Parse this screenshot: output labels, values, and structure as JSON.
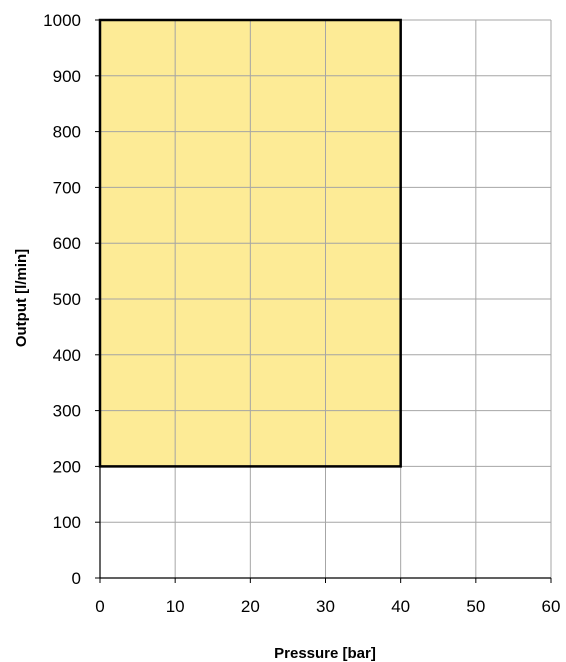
{
  "chart_data": {
    "type": "area",
    "title": "",
    "xlabel": "Pressure [bar]",
    "ylabel": "Output [l/min]",
    "xlim": [
      0,
      60
    ],
    "ylim": [
      0,
      1000
    ],
    "x_ticks": [
      0,
      10,
      20,
      30,
      40,
      50,
      60
    ],
    "y_ticks": [
      0,
      100,
      200,
      300,
      400,
      500,
      600,
      700,
      800,
      900,
      1000
    ],
    "grid": true,
    "legend": "none",
    "regions": [
      {
        "x_range": [
          0,
          40
        ],
        "y_range": [
          200,
          1000
        ],
        "fill_color": "#fde784",
        "border_color": "#000000"
      }
    ]
  },
  "colors": {
    "grid": "#a6a6a6",
    "axis": "#000000",
    "background": "#ffffff"
  }
}
